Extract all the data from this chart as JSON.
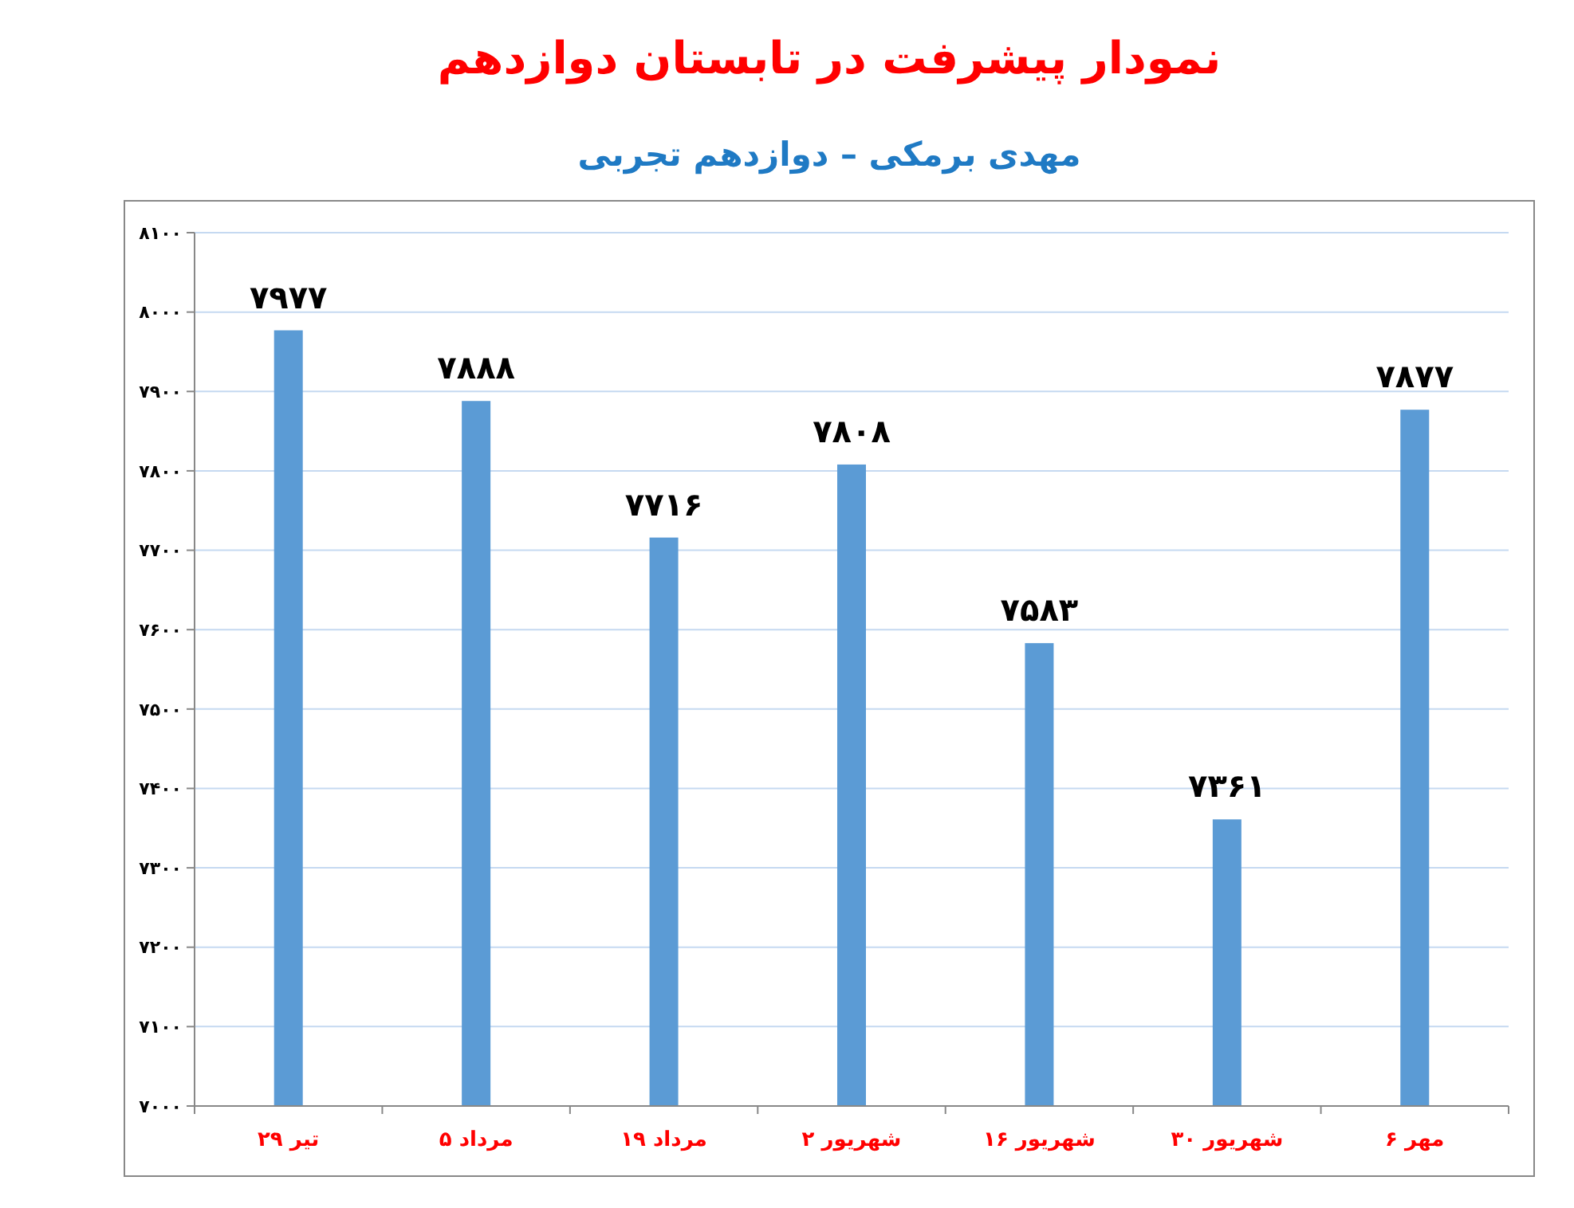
{
  "chart_data": {
    "type": "bar",
    "title": "نمودار پیشرفت در تابستان دوازدهم",
    "subtitle": "مهدی برمکی – دوازدهم تجربی",
    "categories": [
      "۲۹ تیر",
      "۵ مرداد",
      "۱۹ مرداد",
      "۲ شهریور",
      "۱۶ شهریور",
      "۳۰ شهریور",
      "۶ مهر"
    ],
    "values": [
      7977,
      7888,
      7716,
      7808,
      7583,
      7361,
      7877
    ],
    "value_labels": [
      "۷۹۷۷",
      "۷۸۸۸",
      "۷۷۱۶",
      "۷۸۰۸",
      "۷۵۸۳",
      "۷۳۶۱",
      "۷۸۷۷"
    ],
    "color": "#5b9bd5",
    "ylim": [
      7000,
      8100
    ],
    "yticks": [
      {
        "value": 7000,
        "label": "۷۰۰۰"
      },
      {
        "value": 7100,
        "label": "۷۱۰۰"
      },
      {
        "value": 7200,
        "label": "۷۲۰۰"
      },
      {
        "value": 7300,
        "label": "۷۳۰۰"
      },
      {
        "value": 7400,
        "label": "۷۴۰۰"
      },
      {
        "value": 7500,
        "label": "۷۵۰۰"
      },
      {
        "value": 7600,
        "label": "۷۶۰۰"
      },
      {
        "value": 7700,
        "label": "۷۷۰۰"
      },
      {
        "value": 7800,
        "label": "۷۸۰۰"
      },
      {
        "value": 7900,
        "label": "۷۹۰۰"
      },
      {
        "value": 8000,
        "label": "۸۰۰۰"
      },
      {
        "value": 8100,
        "label": "۸۱۰۰"
      }
    ],
    "grid": "y"
  }
}
